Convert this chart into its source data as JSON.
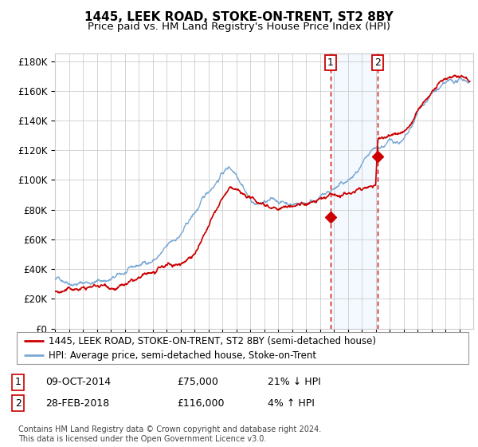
{
  "title": "1445, LEEK ROAD, STOKE-ON-TRENT, ST2 8BY",
  "subtitle": "Price paid vs. HM Land Registry's House Price Index (HPI)",
  "ylim": [
    0,
    185000
  ],
  "xlim_start": 1995.0,
  "xlim_end": 2025.0,
  "yticks": [
    0,
    20000,
    40000,
    60000,
    80000,
    100000,
    120000,
    140000,
    160000,
    180000
  ],
  "ytick_labels": [
    "£0",
    "£20K",
    "£40K",
    "£60K",
    "£80K",
    "£100K",
    "£120K",
    "£140K",
    "£160K",
    "£180K"
  ],
  "xticks": [
    1995,
    1996,
    1997,
    1998,
    1999,
    2000,
    2001,
    2002,
    2003,
    2004,
    2005,
    2006,
    2007,
    2008,
    2009,
    2010,
    2011,
    2012,
    2013,
    2014,
    2015,
    2016,
    2017,
    2018,
    2019,
    2020,
    2021,
    2022,
    2023,
    2024
  ],
  "hpi_color": "#7aa8d4",
  "price_color": "#cc0000",
  "shade_color": "#ddeeff",
  "vline_color": "#cc0000",
  "grid_color": "#cccccc",
  "bg_color": "#ffffff",
  "marker1_date": 2014.77,
  "marker1_price": 75000,
  "marker1_label": "1",
  "marker2_date": 2018.16,
  "marker2_price": 116000,
  "marker2_label": "2",
  "legend_line1": "1445, LEEK ROAD, STOKE-ON-TRENT, ST2 8BY (semi-detached house)",
  "legend_line2": "HPI: Average price, semi-detached house, Stoke-on-Trent",
  "table_row1_num": "1",
  "table_row1_date": "09-OCT-2014",
  "table_row1_price": "£75,000",
  "table_row1_hpi": "21% ↓ HPI",
  "table_row2_num": "2",
  "table_row2_date": "28-FEB-2018",
  "table_row2_price": "£116,000",
  "table_row2_hpi": "4% ↑ HPI",
  "footnote": "Contains HM Land Registry data © Crown copyright and database right 2024.\nThis data is licensed under the Open Government Licence v3.0.",
  "title_fontsize": 11,
  "subtitle_fontsize": 9.5
}
